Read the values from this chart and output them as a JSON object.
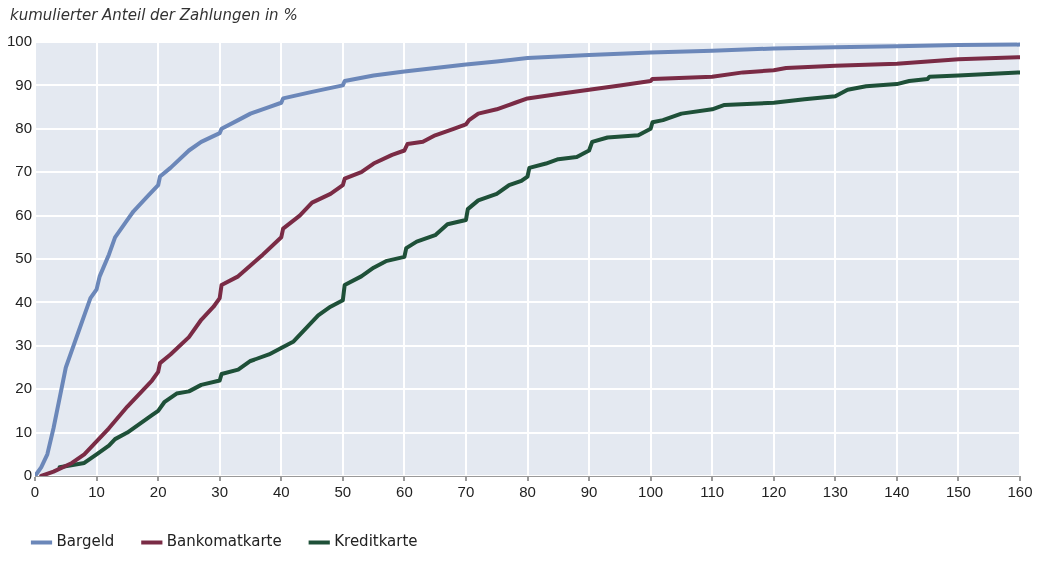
{
  "chart_data": {
    "type": "line",
    "ylabel": "kumulierter Anteil der Zahlungen in %",
    "xlim": [
      0,
      160
    ],
    "xticks": [
      0,
      10,
      20,
      30,
      40,
      50,
      60,
      70,
      80,
      90,
      100,
      110,
      120,
      130,
      140,
      150,
      160
    ],
    "ylim": [
      0,
      100
    ],
    "yticks": [
      0,
      10,
      20,
      30,
      40,
      50,
      60,
      70,
      80,
      90,
      100
    ],
    "grid": true,
    "legend": "bottom left",
    "marker": "none",
    "line_style": "solid",
    "series": [
      {
        "name": "Bargeld",
        "color": "#6b87b9",
        "x": [
          0,
          1,
          2,
          3,
          4,
          5,
          6,
          7,
          8,
          9,
          10,
          10.5,
          12,
          13,
          15,
          16,
          18,
          20,
          20.3,
          22,
          25,
          27,
          30,
          30.3,
          33,
          35,
          38,
          40,
          40.3,
          45,
          50,
          50.3,
          55,
          60,
          65,
          70,
          75,
          80,
          90,
          100,
          110,
          120,
          130,
          140,
          150,
          160
        ],
        "values": [
          0,
          2,
          5,
          11,
          18,
          25,
          29,
          33,
          37,
          41,
          43,
          46,
          51,
          55,
          59,
          61,
          64,
          67,
          69,
          71,
          75,
          77,
          79,
          80,
          82,
          83.5,
          85,
          86,
          87,
          88.5,
          90,
          91,
          92.3,
          93.2,
          94,
          94.8,
          95.5,
          96.3,
          97,
          97.6,
          98,
          98.5,
          98.8,
          99,
          99.3,
          99.4
        ]
      },
      {
        "name": "Bankomatkarte",
        "color": "#7a2b45",
        "x": [
          1,
          3,
          6,
          8,
          10,
          12,
          15,
          17,
          19,
          20,
          20.3,
          22,
          25,
          27,
          29,
          30,
          30.3,
          33,
          35,
          37,
          40,
          40.3,
          43,
          45,
          48,
          50,
          50.3,
          53,
          55,
          58,
          60,
          60.5,
          63,
          65,
          68,
          70,
          70.5,
          72,
          75,
          78,
          80,
          85,
          90,
          95,
          100,
          100.3,
          110,
          115,
          120,
          122,
          130,
          140,
          145,
          150,
          160
        ],
        "values": [
          0,
          1,
          3,
          5,
          8,
          11,
          16,
          19,
          22,
          24,
          26,
          28,
          32,
          36,
          39,
          41,
          44,
          46,
          48.5,
          51,
          55,
          57,
          60,
          63,
          65,
          67,
          68.5,
          70,
          72,
          74,
          75,
          76.5,
          77,
          78.5,
          80,
          81,
          82,
          83.5,
          84.5,
          86,
          87,
          88,
          89,
          90,
          91,
          91.5,
          92,
          93,
          93.5,
          94,
          94.5,
          95,
          95.5,
          96,
          96.5
        ]
      },
      {
        "name": "Kreditkarte",
        "color": "#1e5038",
        "x": [
          4,
          8,
          10,
          12,
          13,
          15,
          17,
          19,
          20,
          21,
          23,
          25,
          27,
          30,
          30.3,
          33,
          35,
          38,
          40,
          42,
          44,
          46,
          48,
          50,
          50.3,
          53,
          55,
          57,
          60,
          60.3,
          62,
          65,
          67,
          70,
          70.3,
          72,
          75,
          77,
          79,
          80,
          80.3,
          83,
          85,
          88,
          90,
          90.5,
          93,
          98,
          100,
          100.3,
          102,
          105,
          110,
          112,
          120,
          125,
          130,
          132,
          135,
          140,
          142,
          145,
          145.3,
          150,
          160
        ],
        "values": [
          2,
          3,
          5,
          7,
          8.5,
          10,
          12,
          14,
          15,
          17,
          19,
          19.5,
          21,
          22,
          23.5,
          24.5,
          26.5,
          28,
          29.5,
          31,
          34,
          37,
          39,
          40.5,
          44,
          46,
          48,
          49.5,
          50.5,
          52.5,
          54,
          55.5,
          58,
          59,
          61.5,
          63.5,
          65,
          67,
          68,
          69,
          71,
          72,
          73,
          73.5,
          75,
          77,
          78,
          78.5,
          80,
          81.5,
          82,
          83.5,
          84.5,
          85.5,
          86,
          86.8,
          87.5,
          89,
          89.8,
          90.3,
          91,
          91.5,
          92,
          92.3,
          93
        ]
      }
    ]
  }
}
